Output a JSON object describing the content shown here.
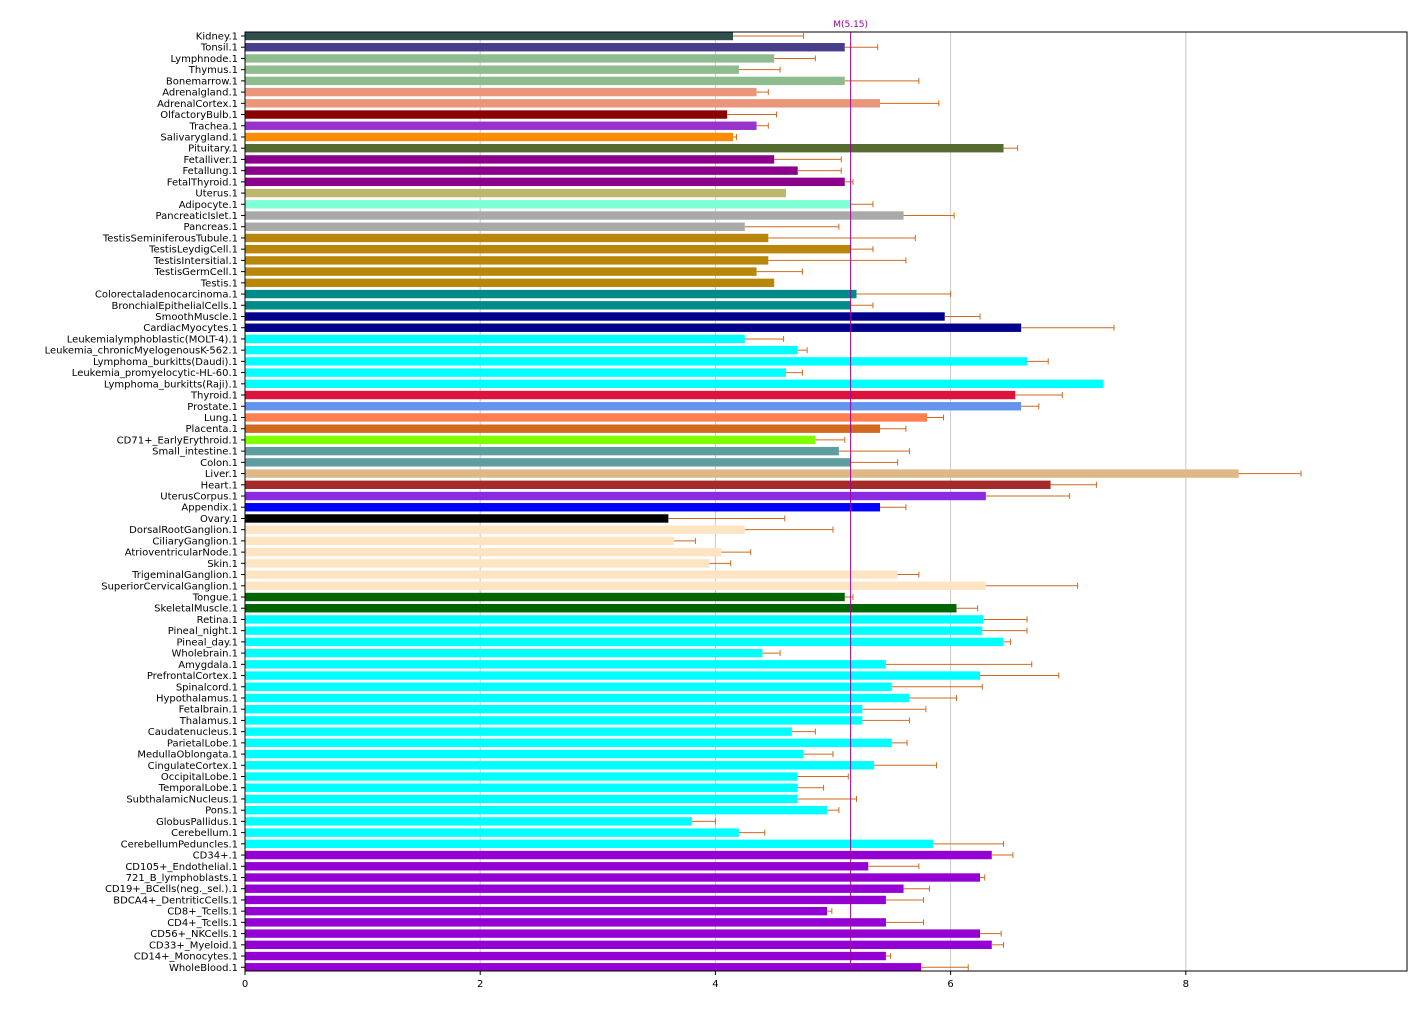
{
  "chart_data": {
    "type": "bar",
    "orientation": "horizontal",
    "title": "",
    "xlabel": "",
    "ylabel": "",
    "xlim": [
      0,
      9.8
    ],
    "xticks": [
      0,
      2,
      4,
      6,
      8
    ],
    "grid": "vertical",
    "legend": "none",
    "error_bar_color": "#d2691e",
    "reference_line": {
      "label": "M(5.15)",
      "value": 5.15,
      "color": "#990099"
    },
    "categories": [
      "Kidney.1",
      "Tonsil.1",
      "Lymphnode.1",
      "Thymus.1",
      "Bonemarrow.1",
      "Adrenalgland.1",
      "AdrenalCortex.1",
      "OlfactoryBulb.1",
      "Trachea.1",
      "Salivarygland.1",
      "Pituitary.1",
      "Fetalliver.1",
      "Fetallung.1",
      "FetalThyroid.1",
      "Uterus.1",
      "Adipocyte.1",
      "PancreaticIslet.1",
      "Pancreas.1",
      "TestisSeminiferousTubule.1",
      "TestisLeydigCell.1",
      "TestisIntersitial.1",
      "TestisGermCell.1",
      "Testis.1",
      "Colorectaladenocarcinoma.1",
      "BronchialEpithelialCells.1",
      "SmoothMuscle.1",
      "CardiacMyocytes.1",
      "Leukemialymphoblastic(MOLT-4).1",
      "Leukemia_chronicMyelogenousK-562.1",
      "Lymphoma_burkitts(Daudi).1",
      "Leukemia_promyelocytic-HL-60.1",
      "Lymphoma_burkitts(Raji).1",
      "Thyroid.1",
      "Prostate.1",
      "Lung.1",
      "Placenta.1",
      "CD71+_EarlyErythroid.1",
      "Small_intestine.1",
      "Colon.1",
      "Liver.1",
      "Heart.1",
      "UterusCorpus.1",
      "Appendix.1",
      "Ovary.1",
      "DorsalRootGanglion.1",
      "CiliaryGanglion.1",
      "AtrioventricularNode.1",
      "Skin.1",
      "TrigeminalGanglion.1",
      "SuperiorCervicalGanglion.1",
      "Tongue.1",
      "SkeletalMuscle.1",
      "Retina.1",
      "Pineal_night.1",
      "Pineal_day.1",
      "Wholebrain.1",
      "Amygdala.1",
      "PrefrontalCortex.1",
      "Spinalcord.1",
      "Hypothalamus.1",
      "Fetalbrain.1",
      "Thalamus.1",
      "Caudatenucleus.1",
      "ParietalLobe.1",
      "MedullaOblongata.1",
      "CingulateCortex.1",
      "OccipitalLobe.1",
      "TemporalLobe.1",
      "SubthalamicNucleus.1",
      "Pons.1",
      "GlobusPallidus.1",
      "Cerebellum.1",
      "CerebellumPeduncles.1",
      "CD34+.1",
      "CD105+_Endothelial.1",
      "721_B_lymphoblasts.1",
      "CD19+_BCells(neg._sel.).1",
      "BDCA4+_DentriticCells.1",
      "CD8+_Tcells.1",
      "CD4+_Tcells.1",
      "CD56+_NKCells.1",
      "CD33+_Myeloid.1",
      "CD14+_Monocytes.1",
      "WholeBlood.1"
    ],
    "values": [
      4.15,
      5.1,
      4.5,
      4.2,
      5.1,
      4.35,
      5.4,
      4.1,
      4.35,
      4.15,
      6.45,
      4.5,
      4.7,
      5.1,
      4.6,
      5.15,
      5.6,
      4.25,
      4.45,
      5.15,
      4.45,
      4.35,
      4.5,
      5.2,
      5.15,
      5.95,
      6.6,
      4.25,
      4.7,
      6.65,
      4.6,
      7.3,
      6.55,
      6.6,
      5.8,
      5.4,
      4.85,
      5.05,
      5.15,
      8.45,
      6.85,
      6.3,
      5.4,
      3.6,
      4.25,
      3.65,
      4.05,
      3.95,
      5.55,
      6.3,
      5.1,
      6.05,
      6.28,
      6.27,
      6.45,
      4.4,
      5.45,
      6.25,
      5.5,
      5.65,
      5.25,
      5.25,
      4.65,
      5.5,
      4.75,
      5.35,
      4.7,
      4.7,
      4.7,
      4.95,
      3.8,
      4.2,
      5.85,
      6.35,
      5.3,
      6.25,
      5.6,
      5.45,
      4.95,
      5.45,
      6.25,
      6.35,
      5.45,
      5.75
    ],
    "errors": [
      0.6,
      0.28,
      0.35,
      0.35,
      0.63,
      0.1,
      0.5,
      0.42,
      0.1,
      0.03,
      0.12,
      0.57,
      0.37,
      0.07,
      0.0,
      0.19,
      0.43,
      0.8,
      1.25,
      0.19,
      1.17,
      0.39,
      0.0,
      0.8,
      0.19,
      0.3,
      0.79,
      0.33,
      0.08,
      0.18,
      0.14,
      0.0,
      0.4,
      0.15,
      0.14,
      0.22,
      0.25,
      0.6,
      0.4,
      0.53,
      0.39,
      0.71,
      0.22,
      0.99,
      0.75,
      0.18,
      0.25,
      0.18,
      0.18,
      0.78,
      0.07,
      0.18,
      0.37,
      0.38,
      0.06,
      0.15,
      1.24,
      0.67,
      0.77,
      0.4,
      0.54,
      0.4,
      0.2,
      0.13,
      0.25,
      0.53,
      0.43,
      0.22,
      0.5,
      0.1,
      0.2,
      0.22,
      0.6,
      0.18,
      0.43,
      0.04,
      0.22,
      0.32,
      0.04,
      0.32,
      0.18,
      0.1,
      0.04,
      0.4
    ],
    "colors": [
      "#2f4f4f",
      "#483d8b",
      "#8fbc8f",
      "#8fbc8f",
      "#8fbc8f",
      "#e9967a",
      "#e9967a",
      "#8b0000",
      "#9932cc",
      "#ff8c00",
      "#556b2f",
      "#8b008b",
      "#8b008b",
      "#8b008b",
      "#bdb76b",
      "#7fffd4",
      "#a9a9a9",
      "#a9a9a9",
      "#b8860b",
      "#b8860b",
      "#b8860b",
      "#b8860b",
      "#b8860b",
      "#008b8b",
      "#008b8b",
      "#00008b",
      "#00008b",
      "#00ffff",
      "#00ffff",
      "#00ffff",
      "#00ffff",
      "#00ffff",
      "#dc143c",
      "#6495ed",
      "#ff7f50",
      "#d2691e",
      "#7fff00",
      "#5f9ea0",
      "#5f9ea0",
      "#deb887",
      "#a52a2a",
      "#8a2be2",
      "#0000ff",
      "#000000",
      "#ffe4c4",
      "#ffe4c4",
      "#ffe4c4",
      "#ffe4c4",
      "#ffe4c4",
      "#ffe4c4",
      "#006400",
      "#006400",
      "#00ffff",
      "#00ffff",
      "#00ffff",
      "#00ffff",
      "#00ffff",
      "#00ffff",
      "#00ffff",
      "#00ffff",
      "#00ffff",
      "#00ffff",
      "#00ffff",
      "#00ffff",
      "#00ffff",
      "#00ffff",
      "#00ffff",
      "#00ffff",
      "#00ffff",
      "#00ffff",
      "#00ffff",
      "#00ffff",
      "#00ffff",
      "#9400d3",
      "#9400d3",
      "#9400d3",
      "#9400d3",
      "#9400d3",
      "#9400d3",
      "#9400d3",
      "#9400d3",
      "#9400d3",
      "#9400d3",
      "#9400d3"
    ]
  }
}
